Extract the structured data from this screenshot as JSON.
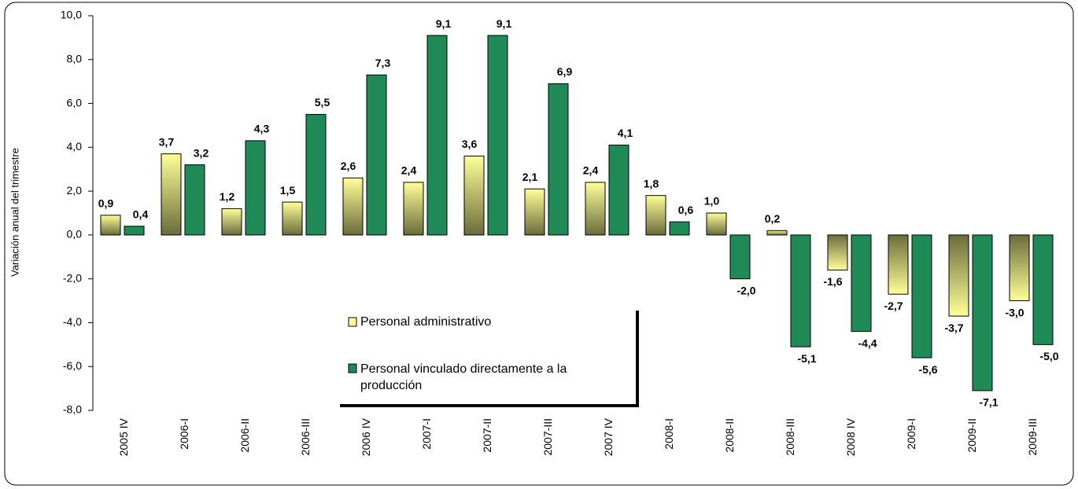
{
  "chart_data": {
    "type": "bar",
    "y_label": "Variación anual del trimestre",
    "categories": [
      "2005 IV",
      "2006-I",
      "2006-II",
      "2006-III",
      "2006 IV",
      "2007-I",
      "2007-II",
      "2007-III",
      "2007 IV",
      "2008-I",
      "2008-II",
      "2008-III",
      "2008 IV",
      "2009-I",
      "2009-II",
      "2009-III"
    ],
    "series": [
      {
        "name": "Personal administrativo",
        "color": "#ffff99",
        "values": [
          0.9,
          3.7,
          1.2,
          1.5,
          2.6,
          2.4,
          3.6,
          2.1,
          2.4,
          1.8,
          1.0,
          0.2,
          -1.6,
          -2.7,
          -3.7,
          -3.0
        ],
        "value_labels": [
          "0,9",
          "3,7",
          "1,2",
          "1,5",
          "2,6",
          "2,4",
          "3,6",
          "2,1",
          "2,4",
          "1,8",
          "1,0",
          "0,2",
          "-1,6",
          "-2,7",
          "-3,7",
          "-3,0"
        ]
      },
      {
        "name": "Personal vinculado directamente a la producción",
        "color": "#1f8a55",
        "values": [
          0.4,
          3.2,
          4.3,
          5.5,
          7.3,
          9.1,
          9.1,
          6.9,
          4.1,
          0.6,
          -2.0,
          -5.1,
          -4.4,
          -5.6,
          -7.1,
          -5.0
        ],
        "value_labels": [
          "0,4",
          "3,2",
          "4,3",
          "5,5",
          "7,3",
          "9,1",
          "9,1",
          "6,9",
          "4,1",
          "0,6",
          "-2,0",
          "-5,1",
          "-4,4",
          "-5,6",
          "-7,1",
          "-5,0"
        ]
      }
    ],
    "ylim": [
      -8,
      10
    ],
    "yticks": [
      {
        "value": -8,
        "label": "-8,0"
      },
      {
        "value": -6,
        "label": "-6,0"
      },
      {
        "value": -4,
        "label": "-4,0"
      },
      {
        "value": -2,
        "label": "-2,0"
      },
      {
        "value": 0,
        "label": "0,0"
      },
      {
        "value": 2,
        "label": "2,0"
      },
      {
        "value": 4,
        "label": "4,0"
      },
      {
        "value": 6,
        "label": "6,0"
      },
      {
        "value": 8,
        "label": "8,0"
      },
      {
        "value": 10,
        "label": "10,0"
      }
    ],
    "grid": false
  }
}
